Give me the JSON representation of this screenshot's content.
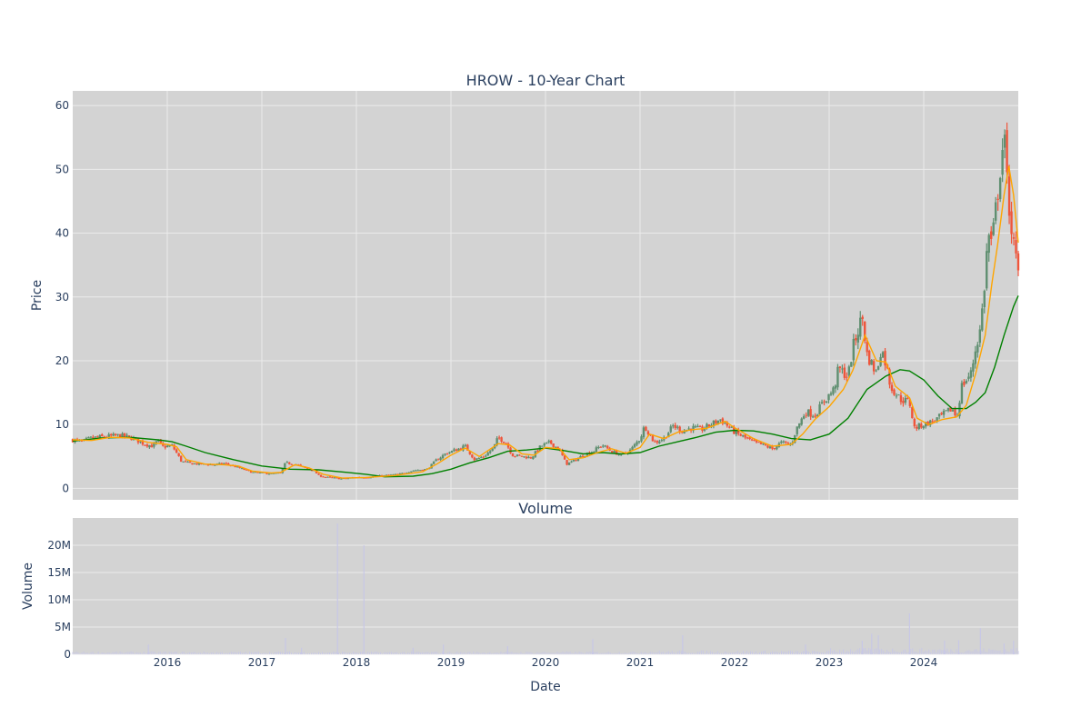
{
  "colors": {
    "plot_bg": "#d3d3d3",
    "grid": "#ebebeb",
    "text": "#2a3f5f",
    "up": "#5f8f70",
    "down": "#ef553b",
    "ma_short": "#ffa500",
    "ma_long": "#008000",
    "volume_bar": "#c8c8e6"
  },
  "chart_data": [
    {
      "type": "candlestick",
      "title": "HROW - 10-Year Chart",
      "ylabel": "Price",
      "xlim": [
        2015.0,
        2025.0
      ],
      "ylim": [
        -1.8,
        62.3
      ],
      "grid": true,
      "yticks": [
        0,
        10,
        20,
        30,
        40,
        50,
        60
      ],
      "price_close": [
        [
          2015.0,
          7.6
        ],
        [
          2015.1,
          7.3
        ],
        [
          2015.2,
          7.9
        ],
        [
          2015.35,
          8.1
        ],
        [
          2015.5,
          8.3
        ],
        [
          2015.65,
          7.8
        ],
        [
          2015.75,
          7.0
        ],
        [
          2015.85,
          6.6
        ],
        [
          2015.9,
          7.5
        ],
        [
          2015.95,
          6.5
        ],
        [
          2016.05,
          6.7
        ],
        [
          2016.1,
          5.5
        ],
        [
          2016.15,
          4.2
        ],
        [
          2016.25,
          3.9
        ],
        [
          2016.35,
          3.8
        ],
        [
          2016.5,
          3.7
        ],
        [
          2016.6,
          3.9
        ],
        [
          2016.7,
          3.5
        ],
        [
          2016.8,
          3.0
        ],
        [
          2016.9,
          2.5
        ],
        [
          2017.0,
          2.4
        ],
        [
          2017.1,
          2.3
        ],
        [
          2017.2,
          2.4
        ],
        [
          2017.25,
          4.0
        ],
        [
          2017.35,
          3.8
        ],
        [
          2017.45,
          3.2
        ],
        [
          2017.55,
          2.8
        ],
        [
          2017.6,
          2.0
        ],
        [
          2017.7,
          1.7
        ],
        [
          2017.85,
          1.5
        ],
        [
          2018.0,
          1.7
        ],
        [
          2018.15,
          1.8
        ],
        [
          2018.3,
          2.0
        ],
        [
          2018.45,
          2.2
        ],
        [
          2018.6,
          2.8
        ],
        [
          2018.75,
          3.0
        ],
        [
          2018.85,
          4.5
        ],
        [
          2018.95,
          5.5
        ],
        [
          2019.05,
          6.0
        ],
        [
          2019.15,
          6.6
        ],
        [
          2019.25,
          4.5
        ],
        [
          2019.35,
          5.0
        ],
        [
          2019.45,
          6.3
        ],
        [
          2019.5,
          8.0
        ],
        [
          2019.58,
          7.2
        ],
        [
          2019.65,
          5.2
        ],
        [
          2019.75,
          5.0
        ],
        [
          2019.85,
          4.8
        ],
        [
          2019.95,
          6.6
        ],
        [
          2020.05,
          7.2
        ],
        [
          2020.15,
          6.0
        ],
        [
          2020.22,
          3.8
        ],
        [
          2020.3,
          4.3
        ],
        [
          2020.4,
          5.2
        ],
        [
          2020.5,
          5.8
        ],
        [
          2020.6,
          6.8
        ],
        [
          2020.7,
          5.8
        ],
        [
          2020.8,
          5.2
        ],
        [
          2020.9,
          6.0
        ],
        [
          2021.0,
          7.8
        ],
        [
          2021.05,
          9.8
        ],
        [
          2021.15,
          7.2
        ],
        [
          2021.25,
          7.8
        ],
        [
          2021.35,
          9.8
        ],
        [
          2021.45,
          9.0
        ],
        [
          2021.55,
          9.5
        ],
        [
          2021.65,
          9.2
        ],
        [
          2021.75,
          10.0
        ],
        [
          2021.85,
          10.8
        ],
        [
          2021.95,
          9.5
        ],
        [
          2022.0,
          8.8
        ],
        [
          2022.1,
          8.0
        ],
        [
          2022.2,
          7.2
        ],
        [
          2022.3,
          6.8
        ],
        [
          2022.4,
          6.2
        ],
        [
          2022.5,
          7.2
        ],
        [
          2022.6,
          6.8
        ],
        [
          2022.65,
          9.2
        ],
        [
          2022.75,
          12.0
        ],
        [
          2022.85,
          11.5
        ],
        [
          2022.95,
          13.8
        ],
        [
          2023.05,
          15.5
        ],
        [
          2023.1,
          18.8
        ],
        [
          2023.2,
          17.5
        ],
        [
          2023.25,
          22.0
        ],
        [
          2023.3,
          24.5
        ],
        [
          2023.35,
          27.0
        ],
        [
          2023.4,
          21.0
        ],
        [
          2023.5,
          18.0
        ],
        [
          2023.55,
          22.0
        ],
        [
          2023.6,
          19.5
        ],
        [
          2023.65,
          16.0
        ],
        [
          2023.75,
          14.0
        ],
        [
          2023.85,
          13.5
        ],
        [
          2023.9,
          9.5
        ],
        [
          2024.0,
          10.0
        ],
        [
          2024.1,
          10.5
        ],
        [
          2024.2,
          11.5
        ],
        [
          2024.3,
          12.5
        ],
        [
          2024.35,
          11.0
        ],
        [
          2024.4,
          16.0
        ],
        [
          2024.5,
          18.0
        ],
        [
          2024.55,
          22.0
        ],
        [
          2024.6,
          25.0
        ],
        [
          2024.65,
          33.0
        ],
        [
          2024.68,
          40.0
        ],
        [
          2024.72,
          38.0
        ],
        [
          2024.78,
          46.0
        ],
        [
          2024.82,
          52.0
        ],
        [
          2024.85,
          55.0
        ],
        [
          2024.88,
          48.0
        ],
        [
          2024.92,
          42.0
        ],
        [
          2024.96,
          37.0
        ],
        [
          2025.0,
          33.5
        ]
      ],
      "ma_short": [
        [
          2015.0,
          7.6
        ],
        [
          2015.2,
          7.5
        ],
        [
          2015.4,
          8.0
        ],
        [
          2015.6,
          7.9
        ],
        [
          2015.8,
          7.2
        ],
        [
          2016.0,
          6.9
        ],
        [
          2016.1,
          6.5
        ],
        [
          2016.2,
          4.5
        ],
        [
          2016.4,
          3.8
        ],
        [
          2016.6,
          3.7
        ],
        [
          2016.75,
          3.5
        ],
        [
          2016.9,
          2.7
        ],
        [
          2017.1,
          2.4
        ],
        [
          2017.2,
          2.5
        ],
        [
          2017.35,
          3.7
        ],
        [
          2017.5,
          3.2
        ],
        [
          2017.65,
          2.2
        ],
        [
          2017.85,
          1.6
        ],
        [
          2018.1,
          1.7
        ],
        [
          2018.4,
          2.0
        ],
        [
          2018.7,
          2.6
        ],
        [
          2018.85,
          3.8
        ],
        [
          2019.0,
          5.2
        ],
        [
          2019.15,
          6.3
        ],
        [
          2019.3,
          5.0
        ],
        [
          2019.5,
          7.0
        ],
        [
          2019.62,
          6.8
        ],
        [
          2019.75,
          5.4
        ],
        [
          2019.88,
          5.2
        ],
        [
          2020.0,
          6.4
        ],
        [
          2020.15,
          6.2
        ],
        [
          2020.25,
          4.5
        ],
        [
          2020.4,
          4.8
        ],
        [
          2020.55,
          5.6
        ],
        [
          2020.7,
          6.2
        ],
        [
          2020.85,
          5.5
        ],
        [
          2021.0,
          6.4
        ],
        [
          2021.1,
          8.5
        ],
        [
          2021.25,
          7.8
        ],
        [
          2021.4,
          8.8
        ],
        [
          2021.55,
          9.2
        ],
        [
          2021.7,
          9.4
        ],
        [
          2021.9,
          10.5
        ],
        [
          2022.0,
          9.5
        ],
        [
          2022.2,
          7.8
        ],
        [
          2022.4,
          6.6
        ],
        [
          2022.6,
          6.9
        ],
        [
          2022.72,
          8.5
        ],
        [
          2022.85,
          10.8
        ],
        [
          2023.0,
          12.8
        ],
        [
          2023.15,
          15.5
        ],
        [
          2023.25,
          18.5
        ],
        [
          2023.38,
          24.0
        ],
        [
          2023.5,
          20.0
        ],
        [
          2023.6,
          19.8
        ],
        [
          2023.7,
          16.0
        ],
        [
          2023.85,
          14.2
        ],
        [
          2023.93,
          11.0
        ],
        [
          2024.05,
          10.0
        ],
        [
          2024.2,
          10.8
        ],
        [
          2024.35,
          11.2
        ],
        [
          2024.45,
          13.0
        ],
        [
          2024.55,
          18.0
        ],
        [
          2024.65,
          24.0
        ],
        [
          2024.72,
          32.0
        ],
        [
          2024.78,
          38.0
        ],
        [
          2024.85,
          46.0
        ],
        [
          2024.9,
          50.5
        ],
        [
          2024.95,
          46.0
        ],
        [
          2025.0,
          38.5
        ]
      ],
      "ma_long": [
        [
          2015.0,
          7.4
        ],
        [
          2015.3,
          7.9
        ],
        [
          2015.6,
          8.0
        ],
        [
          2015.9,
          7.6
        ],
        [
          2016.05,
          7.3
        ],
        [
          2016.2,
          6.6
        ],
        [
          2016.4,
          5.6
        ],
        [
          2016.7,
          4.5
        ],
        [
          2017.0,
          3.5
        ],
        [
          2017.3,
          3.0
        ],
        [
          2017.6,
          2.9
        ],
        [
          2017.9,
          2.5
        ],
        [
          2018.1,
          2.2
        ],
        [
          2018.3,
          1.8
        ],
        [
          2018.6,
          1.9
        ],
        [
          2018.8,
          2.3
        ],
        [
          2019.0,
          3.0
        ],
        [
          2019.2,
          4.0
        ],
        [
          2019.4,
          4.8
        ],
        [
          2019.6,
          5.8
        ],
        [
          2019.8,
          6.0
        ],
        [
          2020.0,
          6.3
        ],
        [
          2020.2,
          5.9
        ],
        [
          2020.4,
          5.4
        ],
        [
          2020.6,
          5.6
        ],
        [
          2020.8,
          5.4
        ],
        [
          2021.0,
          5.6
        ],
        [
          2021.2,
          6.6
        ],
        [
          2021.4,
          7.3
        ],
        [
          2021.6,
          8.0
        ],
        [
          2021.8,
          8.8
        ],
        [
          2022.0,
          9.1
        ],
        [
          2022.2,
          9.0
        ],
        [
          2022.4,
          8.5
        ],
        [
          2022.6,
          7.8
        ],
        [
          2022.8,
          7.6
        ],
        [
          2023.0,
          8.5
        ],
        [
          2023.2,
          11.0
        ],
        [
          2023.4,
          15.5
        ],
        [
          2023.6,
          17.6
        ],
        [
          2023.75,
          18.6
        ],
        [
          2023.85,
          18.4
        ],
        [
          2024.0,
          17.0
        ],
        [
          2024.15,
          14.5
        ],
        [
          2024.3,
          12.5
        ],
        [
          2024.45,
          12.5
        ],
        [
          2024.55,
          13.5
        ],
        [
          2024.65,
          15.0
        ],
        [
          2024.75,
          19.0
        ],
        [
          2024.85,
          24.0
        ],
        [
          2024.95,
          28.5
        ],
        [
          2025.0,
          30.2
        ]
      ]
    },
    {
      "type": "bar",
      "title": "Volume",
      "ylabel": "Volume",
      "xlabel": "Date",
      "xlim": [
        2015.0,
        2025.0
      ],
      "ylim": [
        0,
        25000000
      ],
      "yticks": [
        0,
        5000000,
        10000000,
        15000000,
        20000000
      ],
      "ytick_labels": [
        "0",
        "5M",
        "10M",
        "15M",
        "20M"
      ],
      "xtick_values": [
        2016,
        2017,
        2018,
        2019,
        2020,
        2021,
        2022,
        2023,
        2024
      ],
      "xtick_labels": [
        "2016",
        "2017",
        "2018",
        "2019",
        "2020",
        "2021",
        "2022",
        "2023",
        "2024"
      ],
      "volume_spikes": [
        [
          2015.8,
          1800000
        ],
        [
          2017.25,
          3000000
        ],
        [
          2017.42,
          1200000
        ],
        [
          2017.8,
          24000000
        ],
        [
          2018.08,
          20000000
        ],
        [
          2018.6,
          1200000
        ],
        [
          2018.92,
          1800000
        ],
        [
          2019.6,
          1500000
        ],
        [
          2020.5,
          2800000
        ],
        [
          2021.45,
          3500000
        ],
        [
          2022.75,
          1800000
        ],
        [
          2023.35,
          2500000
        ],
        [
          2023.45,
          3800000
        ],
        [
          2023.52,
          3500000
        ],
        [
          2023.85,
          7500000
        ],
        [
          2024.22,
          2500000
        ],
        [
          2024.37,
          2600000
        ],
        [
          2024.6,
          4800000
        ],
        [
          2024.85,
          2000000
        ],
        [
          2024.95,
          2500000
        ]
      ],
      "volume_base": 300000
    }
  ]
}
